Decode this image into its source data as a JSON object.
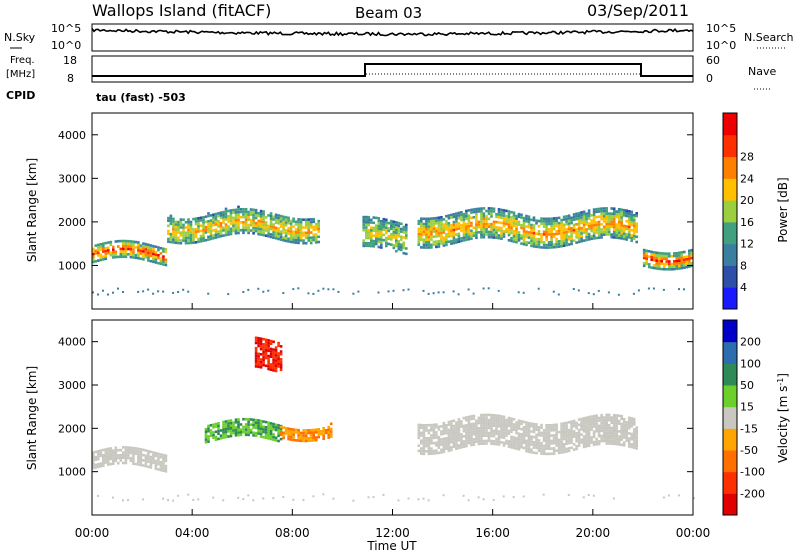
{
  "header": {
    "station": "Wallops Island (fitACF)",
    "beam": "Beam 03",
    "date": "03/Sep/2011"
  },
  "noise_panel": {
    "left_label": "N.Sky",
    "left_ticks": [
      "10^5",
      "10^0"
    ],
    "right_ticks": [
      "10^5",
      "10^0"
    ],
    "right_label": "N.Search"
  },
  "freq_panel": {
    "left_label_1": "Freq.",
    "left_label_2": "[MHz]",
    "left_ticks": [
      "18",
      "8"
    ],
    "right_ticks": [
      "60",
      "0"
    ],
    "right_label": "Nave",
    "cpid_label": "CPID",
    "cpid_value": "tau (fast) -503"
  },
  "chart_data": [
    {
      "type": "heatmap",
      "title": "",
      "ylabel": "Slant Range [km]",
      "xlabel": "",
      "ylim": [
        0,
        4500
      ],
      "yticks": [
        "1000",
        "2000",
        "3000",
        "4000"
      ],
      "colorbar": {
        "label": "Power [dB]",
        "ticks": [
          "4",
          "8",
          "12",
          "16",
          "20",
          "24",
          "28"
        ],
        "colors": [
          "#1a1aff",
          "#2e4fa8",
          "#3b7fa0",
          "#40a080",
          "#9ccf40",
          "#ffc000",
          "#ff8000",
          "#ff3000",
          "#ee0000"
        ]
      },
      "backscatter_bands": [
        {
          "from_h": 0,
          "to_h": 3,
          "range_km": [
            1050,
            1450
          ],
          "power_db": 24
        },
        {
          "from_h": 3,
          "to_h": 9,
          "range_km": [
            1600,
            2200
          ],
          "power_db": 16
        },
        {
          "from_h": 10.8,
          "to_h": 12.5,
          "range_km": [
            1300,
            2000
          ],
          "power_db": 12
        },
        {
          "from_h": 13,
          "to_h": 21.8,
          "range_km": [
            1500,
            2200
          ],
          "power_db": 18
        },
        {
          "from_h": 22,
          "to_h": 24,
          "range_km": [
            1000,
            1400
          ],
          "power_db": 24
        }
      ]
    },
    {
      "type": "heatmap",
      "title": "",
      "ylabel": "Slant Range [km]",
      "xlabel": "Time UT",
      "ylim": [
        0,
        4500
      ],
      "yticks": [
        "1000",
        "2000",
        "3000",
        "4000"
      ],
      "xticks": [
        "00:00",
        "04:00",
        "08:00",
        "12:00",
        "16:00",
        "20:00",
        "00:00"
      ],
      "colorbar": {
        "label": "Velocity [m s-1]",
        "label_main": "Velocity [m s",
        "label_sup": "-1",
        "label_end": "]",
        "ticks": [
          "200",
          "100",
          "50",
          "15",
          "-15",
          "-50",
          "-100",
          "-200"
        ],
        "colors": [
          "#0000c8",
          "#2c6db0",
          "#2e8b57",
          "#6ccf2c",
          "#c8c8c0",
          "#ffa500",
          "#ff7000",
          "#ff3000",
          "#e00000"
        ]
      },
      "velocity_bands": [
        {
          "from_h": 0,
          "to_h": 3,
          "range_km": [
            1050,
            1450
          ],
          "velocity": "ground"
        },
        {
          "from_h": 4.5,
          "to_h": 7.5,
          "range_km": [
            1700,
            2100
          ],
          "velocity": 30
        },
        {
          "from_h": 7.5,
          "to_h": 9.5,
          "range_km": [
            1800,
            2100
          ],
          "velocity": -40
        },
        {
          "from_h": 6.5,
          "to_h": 7.5,
          "range_km": [
            3300,
            4000
          ],
          "velocity": -150
        },
        {
          "from_h": 13,
          "to_h": 21.8,
          "range_km": [
            1500,
            2200
          ],
          "velocity": "ground"
        }
      ]
    }
  ]
}
